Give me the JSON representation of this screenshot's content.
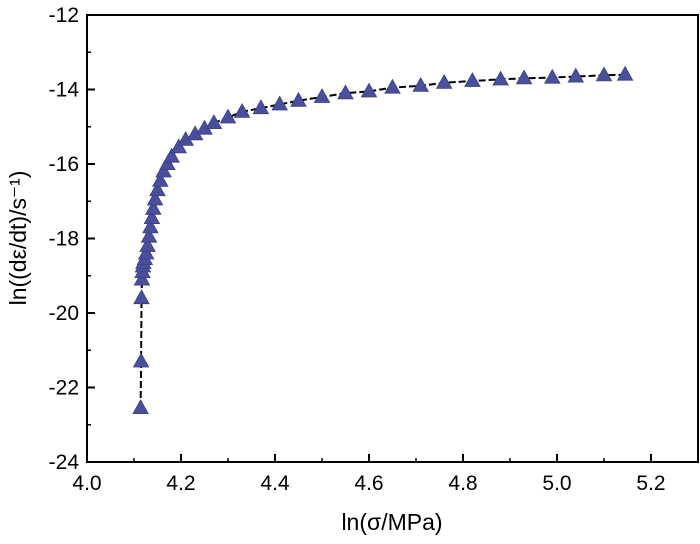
{
  "chart_data": {
    "type": "scatter",
    "xlabel": "ln(σ/MPa)",
    "ylabel": "ln((dε/dt)/s⁻¹)",
    "xlim": [
      4.0,
      5.3
    ],
    "ylim": [
      -24,
      -12
    ],
    "x_ticks": [
      "4.0",
      "4.2",
      "4.4",
      "4.6",
      "4.8",
      "5.0",
      "5.2"
    ],
    "y_ticks": [
      "-12",
      "-14",
      "-16",
      "-18",
      "-20",
      "-22",
      "-24"
    ],
    "x_tick_values": [
      4.0,
      4.2,
      4.4,
      4.6,
      4.8,
      5.0,
      5.2
    ],
    "y_tick_values": [
      -12,
      -14,
      -16,
      -18,
      -20,
      -22,
      -24
    ],
    "grid": false,
    "marker": "triangle",
    "marker_color": "#4a4f9c",
    "fit_line_color": "#000000",
    "series": [
      {
        "x": [
          4.114,
          4.115,
          4.116,
          4.117,
          4.118,
          4.119,
          4.12,
          4.123,
          4.126,
          4.129,
          4.132,
          4.135,
          4.138,
          4.141,
          4.145,
          4.15,
          4.156,
          4.163,
          4.171,
          4.18,
          4.195,
          4.21,
          4.23,
          4.25,
          4.27,
          4.3,
          4.33,
          4.37,
          4.41,
          4.45,
          4.5,
          4.55,
          4.6,
          4.65,
          4.71,
          4.76,
          4.82,
          4.88,
          4.93,
          4.99,
          5.04,
          5.1,
          5.145
        ],
        "y": [
          -22.55,
          -21.3,
          -19.6,
          -19.1,
          -18.9,
          -18.75,
          -18.65,
          -18.55,
          -18.4,
          -18.2,
          -17.95,
          -17.7,
          -17.45,
          -17.2,
          -16.95,
          -16.7,
          -16.45,
          -16.2,
          -16.0,
          -15.8,
          -15.55,
          -15.35,
          -15.2,
          -15.05,
          -14.9,
          -14.75,
          -14.6,
          -14.5,
          -14.4,
          -14.3,
          -14.2,
          -14.1,
          -14.05,
          -13.95,
          -13.9,
          -13.82,
          -13.77,
          -13.73,
          -13.7,
          -13.68,
          -13.65,
          -13.62,
          -13.6
        ]
      }
    ]
  }
}
